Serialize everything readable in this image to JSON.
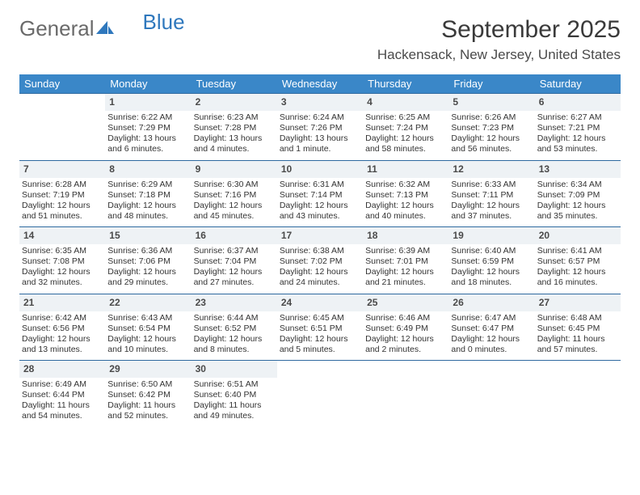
{
  "logo": {
    "word1": "General",
    "word2": "Blue"
  },
  "title": "September 2025",
  "location": "Hackensack, New Jersey, United States",
  "colors": {
    "header_bg": "#3a87c8",
    "header_text": "#ffffff",
    "row_divider": "#2f6aa0",
    "daynum_bg": "#eef2f5",
    "accent_logo": "#2f78bd"
  },
  "weekdays": [
    "Sunday",
    "Monday",
    "Tuesday",
    "Wednesday",
    "Thursday",
    "Friday",
    "Saturday"
  ],
  "weeks": [
    {
      "nums": [
        "",
        "1",
        "2",
        "3",
        "4",
        "5",
        "6"
      ],
      "cells": [
        {
          "empty": true
        },
        {
          "sunrise": "Sunrise: 6:22 AM",
          "sunset": "Sunset: 7:29 PM",
          "day1": "Daylight: 13 hours",
          "day2": "and 6 minutes."
        },
        {
          "sunrise": "Sunrise: 6:23 AM",
          "sunset": "Sunset: 7:28 PM",
          "day1": "Daylight: 13 hours",
          "day2": "and 4 minutes."
        },
        {
          "sunrise": "Sunrise: 6:24 AM",
          "sunset": "Sunset: 7:26 PM",
          "day1": "Daylight: 13 hours",
          "day2": "and 1 minute."
        },
        {
          "sunrise": "Sunrise: 6:25 AM",
          "sunset": "Sunset: 7:24 PM",
          "day1": "Daylight: 12 hours",
          "day2": "and 58 minutes."
        },
        {
          "sunrise": "Sunrise: 6:26 AM",
          "sunset": "Sunset: 7:23 PM",
          "day1": "Daylight: 12 hours",
          "day2": "and 56 minutes."
        },
        {
          "sunrise": "Sunrise: 6:27 AM",
          "sunset": "Sunset: 7:21 PM",
          "day1": "Daylight: 12 hours",
          "day2": "and 53 minutes."
        }
      ]
    },
    {
      "nums": [
        "7",
        "8",
        "9",
        "10",
        "11",
        "12",
        "13"
      ],
      "cells": [
        {
          "sunrise": "Sunrise: 6:28 AM",
          "sunset": "Sunset: 7:19 PM",
          "day1": "Daylight: 12 hours",
          "day2": "and 51 minutes."
        },
        {
          "sunrise": "Sunrise: 6:29 AM",
          "sunset": "Sunset: 7:18 PM",
          "day1": "Daylight: 12 hours",
          "day2": "and 48 minutes."
        },
        {
          "sunrise": "Sunrise: 6:30 AM",
          "sunset": "Sunset: 7:16 PM",
          "day1": "Daylight: 12 hours",
          "day2": "and 45 minutes."
        },
        {
          "sunrise": "Sunrise: 6:31 AM",
          "sunset": "Sunset: 7:14 PM",
          "day1": "Daylight: 12 hours",
          "day2": "and 43 minutes."
        },
        {
          "sunrise": "Sunrise: 6:32 AM",
          "sunset": "Sunset: 7:13 PM",
          "day1": "Daylight: 12 hours",
          "day2": "and 40 minutes."
        },
        {
          "sunrise": "Sunrise: 6:33 AM",
          "sunset": "Sunset: 7:11 PM",
          "day1": "Daylight: 12 hours",
          "day2": "and 37 minutes."
        },
        {
          "sunrise": "Sunrise: 6:34 AM",
          "sunset": "Sunset: 7:09 PM",
          "day1": "Daylight: 12 hours",
          "day2": "and 35 minutes."
        }
      ]
    },
    {
      "nums": [
        "14",
        "15",
        "16",
        "17",
        "18",
        "19",
        "20"
      ],
      "cells": [
        {
          "sunrise": "Sunrise: 6:35 AM",
          "sunset": "Sunset: 7:08 PM",
          "day1": "Daylight: 12 hours",
          "day2": "and 32 minutes."
        },
        {
          "sunrise": "Sunrise: 6:36 AM",
          "sunset": "Sunset: 7:06 PM",
          "day1": "Daylight: 12 hours",
          "day2": "and 29 minutes."
        },
        {
          "sunrise": "Sunrise: 6:37 AM",
          "sunset": "Sunset: 7:04 PM",
          "day1": "Daylight: 12 hours",
          "day2": "and 27 minutes."
        },
        {
          "sunrise": "Sunrise: 6:38 AM",
          "sunset": "Sunset: 7:02 PM",
          "day1": "Daylight: 12 hours",
          "day2": "and 24 minutes."
        },
        {
          "sunrise": "Sunrise: 6:39 AM",
          "sunset": "Sunset: 7:01 PM",
          "day1": "Daylight: 12 hours",
          "day2": "and 21 minutes."
        },
        {
          "sunrise": "Sunrise: 6:40 AM",
          "sunset": "Sunset: 6:59 PM",
          "day1": "Daylight: 12 hours",
          "day2": "and 18 minutes."
        },
        {
          "sunrise": "Sunrise: 6:41 AM",
          "sunset": "Sunset: 6:57 PM",
          "day1": "Daylight: 12 hours",
          "day2": "and 16 minutes."
        }
      ]
    },
    {
      "nums": [
        "21",
        "22",
        "23",
        "24",
        "25",
        "26",
        "27"
      ],
      "cells": [
        {
          "sunrise": "Sunrise: 6:42 AM",
          "sunset": "Sunset: 6:56 PM",
          "day1": "Daylight: 12 hours",
          "day2": "and 13 minutes."
        },
        {
          "sunrise": "Sunrise: 6:43 AM",
          "sunset": "Sunset: 6:54 PM",
          "day1": "Daylight: 12 hours",
          "day2": "and 10 minutes."
        },
        {
          "sunrise": "Sunrise: 6:44 AM",
          "sunset": "Sunset: 6:52 PM",
          "day1": "Daylight: 12 hours",
          "day2": "and 8 minutes."
        },
        {
          "sunrise": "Sunrise: 6:45 AM",
          "sunset": "Sunset: 6:51 PM",
          "day1": "Daylight: 12 hours",
          "day2": "and 5 minutes."
        },
        {
          "sunrise": "Sunrise: 6:46 AM",
          "sunset": "Sunset: 6:49 PM",
          "day1": "Daylight: 12 hours",
          "day2": "and 2 minutes."
        },
        {
          "sunrise": "Sunrise: 6:47 AM",
          "sunset": "Sunset: 6:47 PM",
          "day1": "Daylight: 12 hours",
          "day2": "and 0 minutes."
        },
        {
          "sunrise": "Sunrise: 6:48 AM",
          "sunset": "Sunset: 6:45 PM",
          "day1": "Daylight: 11 hours",
          "day2": "and 57 minutes."
        }
      ]
    },
    {
      "nums": [
        "28",
        "29",
        "30",
        "",
        "",
        "",
        ""
      ],
      "cells": [
        {
          "sunrise": "Sunrise: 6:49 AM",
          "sunset": "Sunset: 6:44 PM",
          "day1": "Daylight: 11 hours",
          "day2": "and 54 minutes."
        },
        {
          "sunrise": "Sunrise: 6:50 AM",
          "sunset": "Sunset: 6:42 PM",
          "day1": "Daylight: 11 hours",
          "day2": "and 52 minutes."
        },
        {
          "sunrise": "Sunrise: 6:51 AM",
          "sunset": "Sunset: 6:40 PM",
          "day1": "Daylight: 11 hours",
          "day2": "and 49 minutes."
        },
        {
          "empty": true
        },
        {
          "empty": true
        },
        {
          "empty": true
        },
        {
          "empty": true
        }
      ]
    }
  ]
}
